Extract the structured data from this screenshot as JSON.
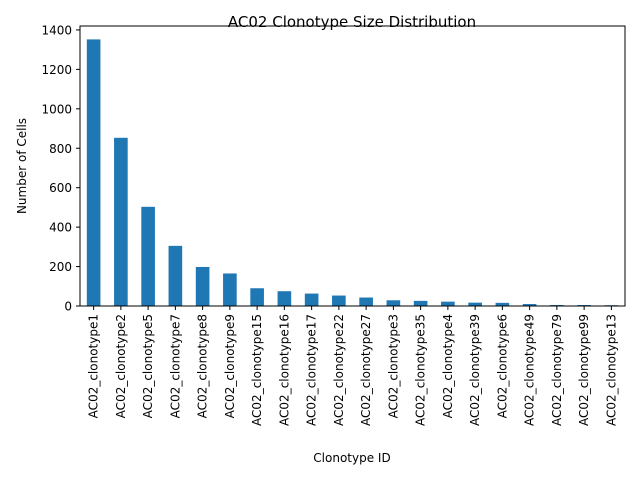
{
  "chart_data": {
    "type": "bar",
    "title": "AC02 Clonotype Size Distribution",
    "xlabel": "Clonotype ID",
    "ylabel": "Number of Cells",
    "ylim": [
      0,
      1420
    ],
    "yticks": [
      0,
      200,
      400,
      600,
      800,
      1000,
      1200,
      1400
    ],
    "grid": false,
    "bar_color": "#1f77b4",
    "categories": [
      "AC02_clonotype1",
      "AC02_clonotype2",
      "AC02_clonotype5",
      "AC02_clonotype7",
      "AC02_clonotype8",
      "AC02_clonotype9",
      "AC02_clonotype15",
      "AC02_clonotype16",
      "AC02_clonotype17",
      "AC02_clonotype22",
      "AC02_clonotype27",
      "AC02_clonotype3",
      "AC02_clonotype35",
      "AC02_clonotype4",
      "AC02_clonotype39",
      "AC02_clonotype6",
      "AC02_clonotype49",
      "AC02_clonotype79",
      "AC02_clonotype99",
      "AC02_clonotype13"
    ],
    "values": [
      1352,
      853,
      503,
      305,
      198,
      165,
      90,
      75,
      63,
      53,
      43,
      29,
      26,
      22,
      17,
      16,
      10,
      5,
      5,
      4
    ]
  }
}
